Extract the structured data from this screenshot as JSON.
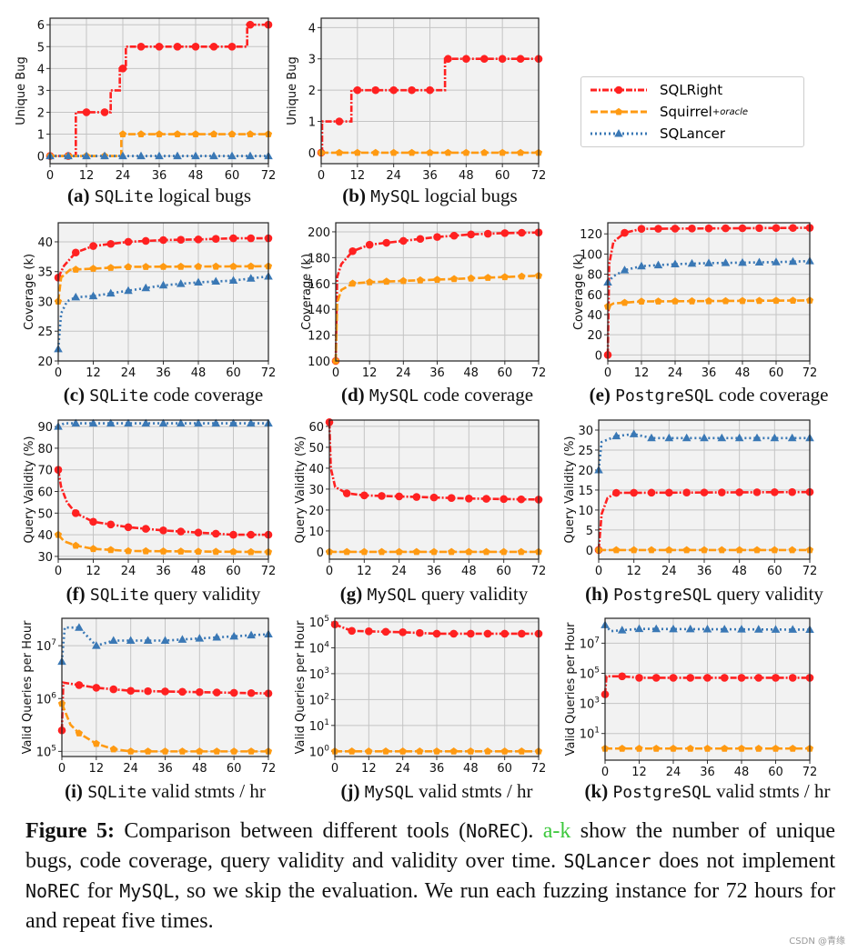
{
  "legend": [
    {
      "name": "SQLRight",
      "sub": "",
      "color": "#ff2121",
      "marker": "circle",
      "dash": "dash-dot"
    },
    {
      "name": "Squirrel",
      "sub": "+oracle",
      "color": "#ff9a12",
      "marker": "pentagon",
      "dash": "dashed"
    },
    {
      "name": "SQLancer",
      "sub": "",
      "color": "#3a78b5",
      "marker": "triangle",
      "dash": "dotted"
    }
  ],
  "chart_data": [
    {
      "id": "a",
      "type": "line",
      "step": true,
      "caption": {
        "label": "(a)",
        "db": "SQLite",
        "text": "logical bugs"
      },
      "ylabel": "Unique Bug",
      "xlim": [
        0,
        72
      ],
      "xticks": [
        0,
        12,
        24,
        36,
        48,
        60,
        72
      ],
      "ylim": [
        -0.35,
        6.3
      ],
      "yticks": [
        0,
        1,
        2,
        3,
        4,
        5,
        6
      ],
      "log": false,
      "series": [
        {
          "name": "SQLRight",
          "x": [
            0,
            8.5,
            20,
            23,
            25,
            65,
            72
          ],
          "y": [
            0,
            2,
            3,
            4,
            5,
            6,
            6
          ]
        },
        {
          "name": "Squirrel",
          "x": [
            0,
            23.5,
            72
          ],
          "y": [
            0,
            1,
            1
          ]
        },
        {
          "name": "SQLancer",
          "x": [
            0,
            72
          ],
          "y": [
            0,
            0
          ]
        }
      ]
    },
    {
      "id": "b",
      "type": "line",
      "step": true,
      "caption": {
        "label": "(b)",
        "db": "MySQL",
        "text": "logcial bugs"
      },
      "ylabel": "Unique Bug",
      "xlim": [
        0,
        72
      ],
      "xticks": [
        0,
        12,
        24,
        36,
        48,
        60,
        72
      ],
      "ylim": [
        -0.35,
        4.3
      ],
      "yticks": [
        0,
        1,
        2,
        3,
        4
      ],
      "log": false,
      "series": [
        {
          "name": "SQLRight",
          "x": [
            0,
            0.3,
            10,
            41,
            72
          ],
          "y": [
            0,
            1,
            2,
            3,
            3
          ]
        },
        {
          "name": "Squirrel",
          "x": [
            0,
            72
          ],
          "y": [
            0,
            0
          ]
        }
      ]
    },
    {
      "id": "c",
      "type": "line",
      "caption": {
        "label": "(c)",
        "db": "SQLite",
        "text": "code coverage"
      },
      "ylabel": "Coverage (k)",
      "xlim": [
        0,
        72
      ],
      "xticks": [
        0,
        12,
        24,
        36,
        48,
        60,
        72
      ],
      "ylim": [
        20,
        43.2
      ],
      "yticks": [
        20,
        25,
        30,
        35,
        40
      ],
      "log": false,
      "series": [
        {
          "name": "SQLRight",
          "x": [
            0,
            2,
            6,
            12,
            24,
            36,
            48,
            60,
            72
          ],
          "y": [
            34,
            36,
            38.2,
            39.3,
            40,
            40.3,
            40.4,
            40.6,
            40.6
          ]
        },
        {
          "name": "Squirrel",
          "x": [
            0,
            1,
            4,
            12,
            24,
            72
          ],
          "y": [
            30,
            34,
            35.3,
            35.5,
            35.8,
            35.9
          ]
        },
        {
          "name": "SQLancer",
          "x": [
            0,
            1,
            3,
            6,
            12,
            24,
            36,
            48,
            60,
            72
          ],
          "y": [
            22,
            28,
            30,
            30.7,
            30.9,
            31.8,
            32.7,
            33.2,
            33.5,
            34.2
          ]
        }
      ]
    },
    {
      "id": "d",
      "type": "line",
      "caption": {
        "label": "(d)",
        "db": "MySQL",
        "text": "code coverage"
      },
      "ylabel": "Coverage (k)",
      "xlim": [
        0,
        72
      ],
      "xticks": [
        0,
        12,
        24,
        36,
        48,
        60,
        72
      ],
      "ylim": [
        100,
        207
      ],
      "yticks": [
        100,
        120,
        140,
        160,
        180,
        200
      ],
      "log": false,
      "series": [
        {
          "name": "SQLRight",
          "x": [
            0,
            0.5,
            2,
            6,
            12,
            24,
            36,
            48,
            60,
            72
          ],
          "y": [
            100,
            165,
            175,
            185,
            190,
            193,
            196,
            198,
            199,
            199.5
          ]
        },
        {
          "name": "Squirrel",
          "x": [
            0,
            0.5,
            2,
            6,
            12,
            24,
            36,
            48,
            60,
            72
          ],
          "y": [
            100,
            145,
            155,
            160,
            161,
            162,
            163,
            164,
            165,
            166
          ]
        }
      ]
    },
    {
      "id": "e",
      "type": "line",
      "caption": {
        "label": "(e)",
        "db": "PostgreSQL",
        "text": "code coverage"
      },
      "ylabel": "Coverage (k)",
      "xlim": [
        0,
        72
      ],
      "xticks": [
        0,
        12,
        24,
        36,
        48,
        60,
        72
      ],
      "ylim": [
        -6,
        131
      ],
      "yticks": [
        0,
        20,
        40,
        60,
        80,
        100,
        120
      ],
      "log": false,
      "series": [
        {
          "name": "SQLRight",
          "x": [
            0,
            0.5,
            2,
            6,
            12,
            72
          ],
          "y": [
            0,
            90,
            112,
            121,
            125,
            126
          ]
        },
        {
          "name": "Squirrel",
          "x": [
            0,
            2,
            12,
            72
          ],
          "y": [
            48,
            51,
            53,
            54
          ]
        },
        {
          "name": "SQLancer",
          "x": [
            0,
            2,
            6,
            12,
            24,
            36,
            48,
            60,
            72
          ],
          "y": [
            72,
            78,
            84,
            88,
            90,
            91,
            91.5,
            92,
            93
          ]
        }
      ]
    },
    {
      "id": "f",
      "type": "line",
      "caption": {
        "label": "(f)",
        "db": "SQLite",
        "text": "query validity"
      },
      "ylabel": "Query Validity (%)",
      "xlim": [
        0,
        72
      ],
      "xticks": [
        0,
        12,
        24,
        36,
        48,
        60,
        72
      ],
      "ylim": [
        28.7,
        93
      ],
      "yticks": [
        30,
        40,
        50,
        60,
        70,
        80,
        90
      ],
      "log": false,
      "series": [
        {
          "name": "SQLRight",
          "x": [
            0,
            1,
            3,
            6,
            12,
            24,
            36,
            48,
            60,
            72
          ],
          "y": [
            70,
            62,
            55,
            50,
            46,
            43.5,
            42,
            41,
            40,
            40
          ]
        },
        {
          "name": "Squirrel",
          "x": [
            0,
            2,
            6,
            12,
            24,
            72
          ],
          "y": [
            40,
            37,
            35,
            33.5,
            32.5,
            32
          ]
        },
        {
          "name": "SQLancer",
          "x": [
            0,
            2,
            72
          ],
          "y": [
            90,
            91.5,
            91.5
          ]
        }
      ]
    },
    {
      "id": "g",
      "type": "line",
      "caption": {
        "label": "(g)",
        "db": "MySQL",
        "text": "query validity"
      },
      "ylabel": "Query Validity (%)",
      "xlim": [
        0,
        72
      ],
      "xticks": [
        0,
        12,
        24,
        36,
        48,
        60,
        72
      ],
      "ylim": [
        -3.5,
        63
      ],
      "yticks": [
        0,
        10,
        20,
        30,
        40,
        50,
        60
      ],
      "log": false,
      "series": [
        {
          "name": "SQLRight",
          "x": [
            0,
            0.5,
            2,
            6,
            12,
            24,
            36,
            48,
            72
          ],
          "y": [
            62,
            40,
            31,
            28,
            27,
            26.5,
            26,
            25.5,
            25
          ]
        },
        {
          "name": "Squirrel",
          "x": [
            0,
            72
          ],
          "y": [
            0,
            0
          ]
        }
      ]
    },
    {
      "id": "h",
      "type": "line",
      "caption": {
        "label": "(h)",
        "db": "PostgreSQL",
        "text": "query validity"
      },
      "ylabel": "Query Validity (%)",
      "xlim": [
        0,
        72
      ],
      "xticks": [
        0,
        12,
        24,
        36,
        48,
        60,
        72
      ],
      "ylim": [
        -2.3,
        32.5
      ],
      "yticks": [
        0,
        5,
        10,
        15,
        20,
        25,
        30
      ],
      "log": false,
      "series": [
        {
          "name": "SQLRight",
          "x": [
            0,
            1,
            3,
            6,
            72
          ],
          "y": [
            0,
            9,
            13,
            14.3,
            14.5
          ]
        },
        {
          "name": "Squirrel",
          "x": [
            0,
            72
          ],
          "y": [
            0,
            0
          ]
        },
        {
          "name": "SQLancer",
          "x": [
            0,
            1,
            6,
            12,
            18,
            72
          ],
          "y": [
            20,
            27,
            28.5,
            29,
            28,
            28
          ]
        }
      ]
    },
    {
      "id": "i",
      "type": "line",
      "caption": {
        "label": "(i)",
        "db": "SQLite",
        "text": "valid stmts / hr"
      },
      "ylabel": "Valid Queries per Hour",
      "xlim": [
        0,
        72
      ],
      "xticks": [
        0,
        12,
        24,
        36,
        48,
        60,
        72
      ],
      "ylim": [
        80000,
        33000000
      ],
      "yticks": [
        100000,
        1000000,
        10000000
      ],
      "log": true,
      "series": [
        {
          "name": "SQLRight",
          "x": [
            0,
            0.5,
            6,
            12,
            24,
            72
          ],
          "y": [
            250000,
            2000000,
            1800000,
            1600000,
            1400000,
            1250000
          ]
        },
        {
          "name": "Squirrel",
          "x": [
            0,
            3,
            6,
            12,
            18,
            24,
            72
          ],
          "y": [
            800000,
            320000,
            220000,
            140000,
            110000,
            100000,
            100000
          ]
        },
        {
          "name": "SQLancer",
          "x": [
            0,
            1,
            6,
            12,
            18,
            36,
            72
          ],
          "y": [
            5000000,
            22000000,
            22000000,
            10000000,
            12500000,
            12500000,
            16500000
          ]
        }
      ]
    },
    {
      "id": "j",
      "type": "line",
      "caption": {
        "label": "(j)",
        "db": "MySQL",
        "text": "valid stmts / hr"
      },
      "ylabel": "Valid Queries per Hour",
      "xlim": [
        0,
        72
      ],
      "xticks": [
        0,
        12,
        24,
        36,
        48,
        60,
        72
      ],
      "ylim": [
        0.63,
        138000
      ],
      "yticks": [
        1,
        10,
        100,
        1000,
        10000,
        100000
      ],
      "log": true,
      "series": [
        {
          "name": "SQLRight",
          "x": [
            0,
            6,
            24,
            36,
            72
          ],
          "y": [
            80000,
            45000,
            40000,
            35000,
            35000
          ]
        },
        {
          "name": "Squirrel",
          "x": [
            0,
            72
          ],
          "y": [
            1,
            1
          ]
        }
      ]
    },
    {
      "id": "k",
      "type": "line",
      "caption": {
        "label": "(k)",
        "db": "PostgreSQL",
        "text": "valid stmts / hr"
      },
      "ylabel": "Valid Queries per Hour",
      "xlim": [
        0,
        72
      ],
      "xticks": [
        0,
        12,
        24,
        36,
        48,
        60,
        72
      ],
      "ylim": [
        0.17,
        450000000
      ],
      "yticks": [
        10,
        1000,
        100000,
        10000000
      ],
      "log": true,
      "series": [
        {
          "name": "SQLRight",
          "x": [
            0,
            0.5,
            6,
            12,
            72
          ],
          "y": [
            4000,
            63000,
            63000,
            50000,
            50000
          ]
        },
        {
          "name": "Squirrel",
          "x": [
            0,
            72
          ],
          "y": [
            1,
            1
          ]
        },
        {
          "name": "SQLancer",
          "x": [
            0,
            2,
            12,
            72
          ],
          "y": [
            160000000,
            63000000,
            89000000,
            79000000
          ]
        }
      ]
    }
  ],
  "caption": {
    "segments": [
      {
        "t": "Figure 5:",
        "s": "b"
      },
      {
        "t": " Comparison between different tools (",
        "s": ""
      },
      {
        "t": "NoREC",
        "s": "m"
      },
      {
        "t": ").  ",
        "s": ""
      },
      {
        "t": "a-k",
        "s": "g"
      },
      {
        "t": " show the number of unique bugs, code coverage, query validity and validity over time. ",
        "s": ""
      },
      {
        "t": "SQLancer",
        "s": "m"
      },
      {
        "t": " does not implement ",
        "s": ""
      },
      {
        "t": "NoREC",
        "s": "m"
      },
      {
        "t": " for ",
        "s": ""
      },
      {
        "t": "MySQL",
        "s": "m"
      },
      {
        "t": ", so we skip the evaluation. We run each fuzzing instance for 72 hours for and repeat five times.",
        "s": ""
      }
    ]
  },
  "watermark": "CSDN @青缘"
}
